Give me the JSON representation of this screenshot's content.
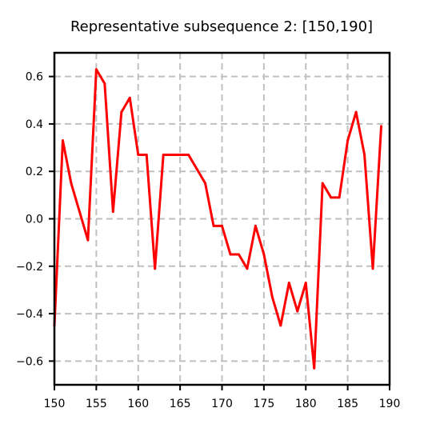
{
  "chart_data": {
    "type": "line",
    "title": "Representative subsequence 2: [150,190]",
    "xlabel": "",
    "ylabel": "",
    "xlim": [
      150,
      190
    ],
    "ylim": [
      -0.7,
      0.7
    ],
    "xticks": [
      150,
      155,
      160,
      165,
      170,
      175,
      180,
      185,
      190
    ],
    "yticks": [
      -0.6,
      -0.4,
      -0.2,
      0.0,
      0.2,
      0.4,
      0.6
    ],
    "ytick_labels": [
      "−0.6",
      "−0.4",
      "−0.2",
      "0.0",
      "0.2",
      "0.4",
      "0.6"
    ],
    "grid": true,
    "legend": "none",
    "series": [
      {
        "color": "#ff0000",
        "x": [
          150,
          151,
          152,
          153,
          154,
          155,
          156,
          157,
          158,
          159,
          160,
          161,
          162,
          163,
          164,
          165,
          166,
          167,
          168,
          169,
          170,
          171,
          172,
          173,
          174,
          175,
          176,
          177,
          178,
          179,
          180,
          181,
          182,
          183,
          184,
          185,
          186,
          187,
          188,
          189
        ],
        "values": [
          -0.45,
          0.33,
          0.15,
          0.03,
          -0.09,
          0.63,
          0.57,
          0.03,
          0.45,
          0.51,
          0.27,
          0.27,
          -0.21,
          0.27,
          0.27,
          0.27,
          0.27,
          0.21,
          0.15,
          -0.03,
          -0.03,
          -0.15,
          -0.15,
          -0.21,
          -0.03,
          -0.15,
          -0.33,
          -0.45,
          -0.27,
          -0.39,
          -0.27,
          -0.63,
          0.15,
          0.09,
          0.09,
          0.33,
          0.45,
          0.27,
          -0.21,
          0.39
        ]
      }
    ]
  }
}
